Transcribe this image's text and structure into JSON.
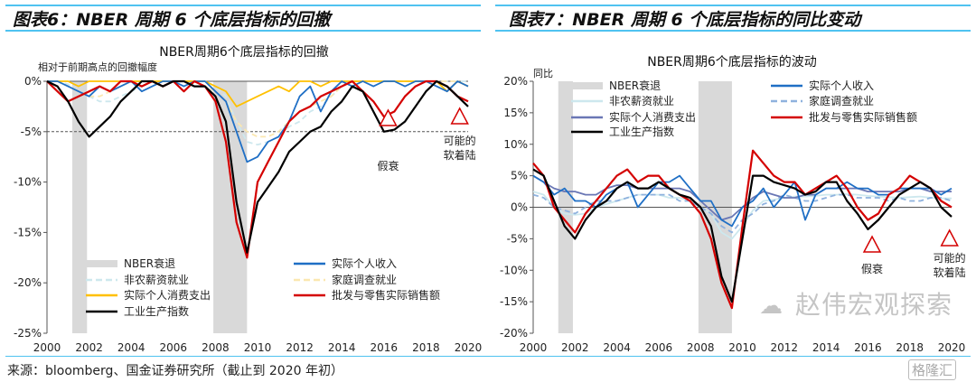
{
  "figures": {
    "left_title": "图表6：NBER 周期 6 个底层指标的回撤",
    "right_title": "图表7：NBER 周期 6 个底层指标的同比变动"
  },
  "source": "来源：bloomberg、国金证券研究所（截止到 2020 年初）",
  "watermark": "赵伟宏观探索",
  "logo": "格隆汇",
  "colors": {
    "ip": "#000000",
    "retail": "#d40000",
    "income": "#1f6fc5",
    "pce_left": "#ffc000",
    "pce_right": "#6a77b5",
    "nonfarm": "#cde8ee",
    "household_left": "#fbe7b0",
    "household_right": "#8fb2de",
    "recession": "#d9d9d9",
    "triangle": "#d40000"
  },
  "chart_data": [
    {
      "type": "line",
      "title": "NBER周期6个底层指标的回撤",
      "ylabel": "相对于前期高点的回撤幅度",
      "xlim": [
        2000,
        2020
      ],
      "ylim": [
        -25,
        0
      ],
      "x_ticks": [
        "2000",
        "2002",
        "2004",
        "2006",
        "2008",
        "2010",
        "2012",
        "2014",
        "2016",
        "2018",
        "2020"
      ],
      "y_ticks": [
        "0%",
        "-5%",
        "-10%",
        "-15%",
        "-20%",
        "-25%"
      ],
      "y_tick_values": [
        0,
        -5,
        -10,
        -15,
        -20,
        -25
      ],
      "x_step": 0.5,
      "recessions": [
        [
          2001.2,
          2001.9
        ],
        [
          2007.9,
          2009.5
        ]
      ],
      "reference_line": -5,
      "legend": [
        "NBER衰退",
        "非农薪资就业",
        "实际个人消费支出",
        "工业生产指数",
        "实际个人收入",
        "家庭调查就业",
        "批发与零售实际销售额"
      ],
      "annotations": [
        {
          "label": "假衰",
          "x": 2016.2
        },
        {
          "label": "可能的",
          "label2": "软着陆",
          "x": 2019.6
        }
      ],
      "series": [
        {
          "name": "非农薪资就业",
          "key": "nonfarm",
          "dash": true,
          "values": [
            0,
            0,
            -0.3,
            -1,
            -1.5,
            -2,
            -2,
            -1.5,
            -1,
            -0.5,
            0,
            0,
            0,
            0,
            0,
            0,
            -0.5,
            -1.5,
            -4,
            -6,
            -6.3,
            -6,
            -5.5,
            -4.5,
            -4,
            -3,
            -2.5,
            -1.5,
            -0.5,
            0,
            0,
            0,
            0,
            0,
            0,
            0,
            0,
            0,
            0,
            0,
            0
          ]
        },
        {
          "name": "家庭调查就业",
          "key": "household_left",
          "dash": true,
          "values": [
            0,
            0,
            -0.5,
            -1,
            -1.5,
            -1.5,
            -1,
            -0.5,
            0,
            0,
            0,
            0,
            0,
            0,
            0,
            -0.5,
            -1,
            -2,
            -4,
            -5,
            -5.5,
            -5.5,
            -5,
            -4,
            -3,
            -2.5,
            -2,
            -1.5,
            -0.5,
            0,
            0,
            0,
            0,
            0,
            0,
            0,
            0,
            0,
            0,
            0,
            -0.5
          ]
        },
        {
          "name": "实际个人消费支出",
          "key": "pce_left",
          "values": [
            0,
            0,
            0,
            -0.5,
            0,
            0,
            0,
            0,
            0,
            0,
            0,
            0,
            0,
            0,
            0,
            0,
            -0.5,
            -1,
            -2.5,
            -2,
            -1.5,
            -1,
            -0.5,
            -1,
            0,
            0,
            -0.5,
            0,
            0,
            0,
            0,
            0,
            0,
            0,
            0,
            0,
            0,
            0,
            -1,
            0,
            -0.5
          ]
        },
        {
          "name": "实际个人收入",
          "key": "income",
          "values": [
            0,
            0,
            -0.5,
            -1,
            -1.5,
            -0.5,
            -1,
            -0.5,
            0,
            -1,
            -0.5,
            0,
            0,
            -0.5,
            0,
            0,
            -1,
            -2,
            -5,
            -8,
            -7.5,
            -6,
            -5.5,
            -4,
            -1.5,
            -0.5,
            -3,
            -1,
            0,
            -0.5,
            0,
            -0.5,
            0,
            0,
            -0.5,
            0,
            0,
            -0.5,
            -1,
            0,
            -0.5
          ]
        },
        {
          "name": "批发与零售实际销售额",
          "key": "retail",
          "values": [
            0,
            -1,
            -2,
            -1.5,
            -1,
            -0.5,
            -1,
            0,
            0,
            -0.5,
            0,
            -0.5,
            0,
            -1,
            0,
            -0.5,
            -2,
            -6,
            -14,
            -17.5,
            -10,
            -8,
            -6,
            -4,
            -3,
            -2.5,
            -1.5,
            -1,
            -0.5,
            0,
            -1,
            -2,
            -3.5,
            -3,
            -1.5,
            -0.5,
            0,
            0,
            -0.5,
            -1.5,
            -2
          ]
        },
        {
          "name": "工业生产指数",
          "key": "ip",
          "values": [
            0,
            -0.5,
            -2,
            -4,
            -5.5,
            -4.5,
            -3.5,
            -2,
            -1,
            0,
            0,
            -0.5,
            0,
            0,
            -0.5,
            -0.5,
            -1.5,
            -4,
            -12,
            -17,
            -12,
            -10.5,
            -9,
            -7,
            -6,
            -5,
            -4.5,
            -3,
            -2,
            -0.5,
            -1,
            -3,
            -5,
            -4.8,
            -4,
            -2.5,
            -1,
            0,
            -0.5,
            -1.5,
            -2.5
          ]
        }
      ]
    },
    {
      "type": "line",
      "title": "NBER周期6个底层指标的波动",
      "ylabel": "同比",
      "xlim": [
        2000,
        2020
      ],
      "ylim": [
        -20,
        20
      ],
      "x_ticks": [
        "2000",
        "2002",
        "2004",
        "2006",
        "2008",
        "2010",
        "2012",
        "2014",
        "2016",
        "2018",
        "2020"
      ],
      "y_ticks": [
        "20%",
        "15%",
        "10%",
        "5%",
        "0%",
        "-5%",
        "-10%",
        "-15%",
        "-20%"
      ],
      "y_tick_values": [
        20,
        15,
        10,
        5,
        0,
        -5,
        -10,
        -15,
        -20
      ],
      "x_step": 0.5,
      "recessions": [
        [
          2001.2,
          2001.9
        ],
        [
          2007.9,
          2009.5
        ]
      ],
      "legend": [
        "NBER衰退",
        "非农薪资就业",
        "实际个人消费支出",
        "工业生产指数",
        "实际个人收入",
        "家庭调查就业",
        "批发与零售实际销售额"
      ],
      "annotations": [
        {
          "label": "假衰",
          "x": 2016.2
        },
        {
          "label": "可能的",
          "label2": "软着陆",
          "x": 2019.9
        }
      ],
      "series": [
        {
          "name": "非农薪资就业",
          "key": "nonfarm",
          "values": [
            2.5,
            2,
            0,
            -1,
            -1.2,
            -1,
            0,
            0.5,
            1,
            1.5,
            2,
            2,
            2,
            1.5,
            1.5,
            1,
            0,
            -1,
            -4,
            -5,
            -3,
            -0.5,
            1,
            1.2,
            1.5,
            1.7,
            1.7,
            1.8,
            2,
            2,
            2.1,
            2,
            1.8,
            1.7,
            1.6,
            1.5,
            1.6,
            1.7,
            1.5,
            1.4,
            1.4
          ]
        },
        {
          "name": "家庭调查就业",
          "key": "household_right",
          "dash": true,
          "values": [
            2,
            1.5,
            0,
            -0.5,
            -1,
            0,
            1,
            1,
            1,
            1.5,
            2,
            2,
            2,
            2,
            1,
            1,
            0,
            -1,
            -3,
            -4,
            -2,
            -1,
            0.5,
            1,
            2,
            1.5,
            1,
            1,
            1.5,
            2,
            2,
            1.5,
            1.5,
            1.5,
            1,
            1.5,
            1,
            1,
            1.5,
            1.5,
            1
          ]
        },
        {
          "name": "实际个人消费支出",
          "key": "pce_right",
          "values": [
            5,
            4,
            3,
            2.5,
            2.5,
            2,
            2,
            3,
            3.5,
            3.5,
            3,
            3,
            3,
            3,
            3,
            2.5,
            1,
            -0.5,
            -2,
            -1.5,
            0,
            1.5,
            2.5,
            2,
            1.5,
            1.5,
            2,
            2,
            3,
            3,
            3,
            3,
            2.5,
            2.5,
            2.5,
            2.5,
            3,
            3,
            2.5,
            2.5,
            2.5
          ]
        },
        {
          "name": "实际个人收入",
          "key": "income",
          "values": [
            5,
            4,
            2,
            3,
            1,
            1,
            0,
            2,
            3,
            4,
            0,
            2,
            4,
            4,
            5,
            3,
            1,
            1,
            -2,
            -3,
            0,
            1,
            3,
            0,
            2,
            4,
            -2,
            2,
            3,
            3,
            4,
            3,
            3,
            2,
            2,
            3,
            3,
            3,
            3,
            2,
            3
          ]
        },
        {
          "name": "批发与零售实际销售额",
          "key": "retail",
          "values": [
            7,
            5,
            0,
            -2,
            -4,
            -1,
            1,
            3,
            5,
            6,
            4,
            5,
            5,
            3,
            2,
            1,
            -1,
            -5,
            -12,
            -16,
            -3,
            9,
            7,
            5,
            4,
            4,
            2,
            3,
            4,
            5,
            3,
            0,
            -2,
            -1,
            2,
            3,
            5,
            4,
            3,
            1,
            0
          ]
        },
        {
          "name": "工业生产指数",
          "key": "ip",
          "values": [
            6,
            5,
            1,
            -3,
            -5,
            -2,
            0,
            1,
            3,
            4,
            3,
            3,
            4,
            3,
            2,
            1.5,
            0,
            -3,
            -11,
            -15,
            -5,
            5,
            5,
            4,
            3.5,
            3,
            2,
            2.5,
            4,
            4,
            1,
            -1,
            -3.5,
            -2,
            0,
            2,
            3,
            4,
            3,
            0,
            -1.5
          ]
        }
      ]
    }
  ]
}
